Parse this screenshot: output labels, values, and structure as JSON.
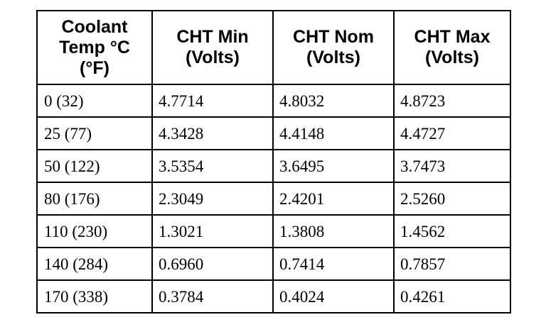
{
  "table": {
    "headers": [
      [
        "Coolant",
        "Temp °C",
        "(°F)"
      ],
      [
        "CHT Min",
        "(Volts)"
      ],
      [
        "CHT Nom",
        "(Volts)"
      ],
      [
        "CHT Max",
        "(Volts)"
      ]
    ],
    "rows": [
      [
        "0 (32)",
        "4.7714",
        "4.8032",
        "4.8723"
      ],
      [
        "25 (77)",
        "4.3428",
        "4.4148",
        "4.4727"
      ],
      [
        "50 (122)",
        "3.5354",
        "3.6495",
        "3.7473"
      ],
      [
        "80 (176)",
        "2.3049",
        "2.4201",
        "2.5260"
      ],
      [
        "110 (230)",
        "1.3021",
        "1.3808",
        "1.4562"
      ],
      [
        "140 (284)",
        "0.6960",
        "0.7414",
        "0.7857"
      ],
      [
        "170 (338)",
        "0.3784",
        "0.4024",
        "0.4261"
      ]
    ]
  }
}
